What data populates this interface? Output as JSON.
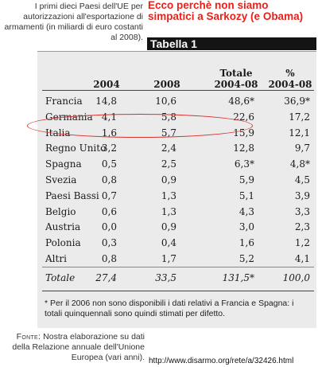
{
  "caption": "I primi dieci Paesi dell'UE per autorizzazioni all'esportazione di armamenti (in miliardi di euro costanti al 2008).",
  "headline": "Ecco perchè non siamo simpatici a Sarkozy  (e Obama)",
  "table_title": "Tabella 1",
  "headers": {
    "y2004": "2004",
    "y2008": "2008",
    "total_line1": "Totale",
    "total_line2": "2004-08",
    "pct_line1": "%",
    "pct_line2": "2004-08"
  },
  "rows": [
    {
      "country": "Francia",
      "v2004": "14,8",
      "v2008": "10,6",
      "total": "48,6*",
      "pct": "36,9*"
    },
    {
      "country": "Germania",
      "v2004": "4,1",
      "v2008": "5,8",
      "total": "22,6",
      "pct": "17,2"
    },
    {
      "country": "Italia",
      "v2004": "1,6",
      "v2008": "5,7",
      "total": "15,9",
      "pct": "12,1"
    },
    {
      "country": "Regno Unito",
      "v2004": "3,2",
      "v2008": "2,4",
      "total": "12,8",
      "pct": "9,7"
    },
    {
      "country": "Spagna",
      "v2004": "0,5",
      "v2008": "2,5",
      "total": "6,3*",
      "pct": "4,8*"
    },
    {
      "country": "Svezia",
      "v2004": "0,8",
      "v2008": "0,9",
      "total": "5,9",
      "pct": "4,5"
    },
    {
      "country": "Paesi Bassi",
      "v2004": "0,7",
      "v2008": "1,3",
      "total": "5,1",
      "pct": "3,9"
    },
    {
      "country": "Belgio",
      "v2004": "0,6",
      "v2008": "1,3",
      "total": "4,3",
      "pct": "3,3"
    },
    {
      "country": "Austria",
      "v2004": "0,0",
      "v2008": "0,9",
      "total": "3,0",
      "pct": "2,3"
    },
    {
      "country": "Polonia",
      "v2004": "0,3",
      "v2008": "0,4",
      "total": "1,6",
      "pct": "1,2"
    },
    {
      "country": "Altri",
      "v2004": "0,8",
      "v2008": "1,7",
      "total": "5,2",
      "pct": "4,1"
    }
  ],
  "total_row": {
    "country": "Totale",
    "v2004": "27,4",
    "v2008": "33,5",
    "total": "131,5*",
    "pct": "100,0"
  },
  "note": "* Per il 2006 non sono disponibili i dati relativi a Francia e Spagna: i totali quinquennali sono quindi stimati per difetto.",
  "fonte_label": "Fonte:",
  "fonte_text": "Nostra elaborazione su dati della Relazione annuale dell'Unione Europea (vari anni).",
  "url": "http://www.disarmo.org/rete/a/32426.html",
  "highlight_color": "#d9312a",
  "headline_color": "#e8211a"
}
